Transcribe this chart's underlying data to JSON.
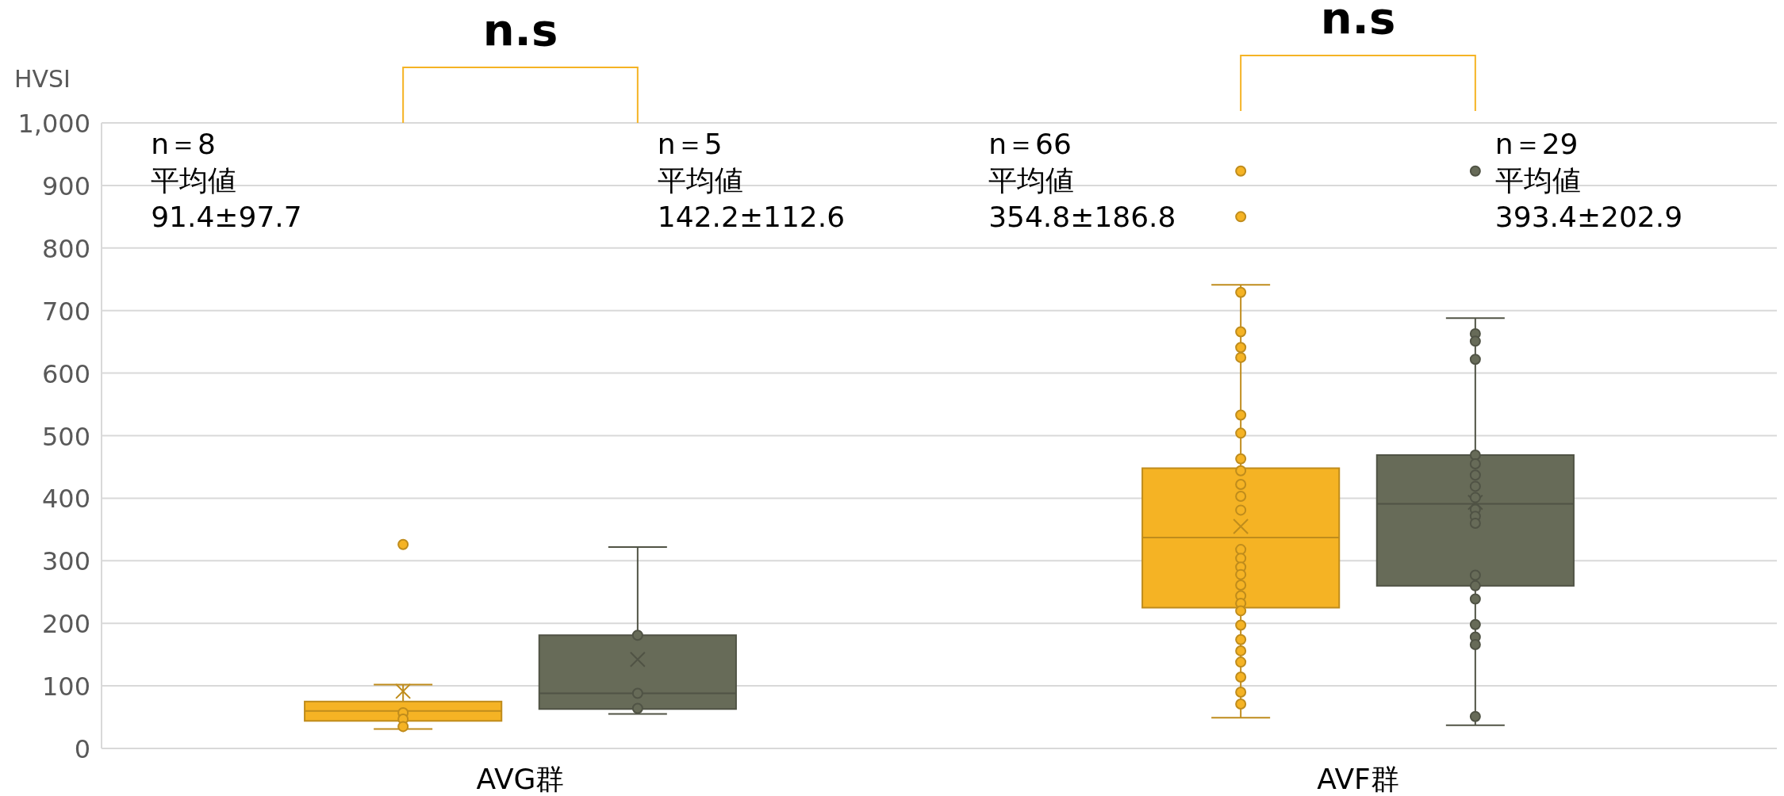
{
  "chart_data": {
    "type": "box",
    "ylabel": "HVSI",
    "categories": [
      "AVG群",
      "AVF群"
    ],
    "ylim": [
      0,
      1000
    ],
    "yticks": [
      0,
      100,
      200,
      300,
      400,
      500,
      600,
      700,
      800,
      900,
      {
        "value": 1000,
        "label": "1,000"
      }
    ],
    "grid": "y",
    "marker": "circle",
    "series": [
      {
        "color": "#f5b324",
        "boxes": [
          {
            "low": 31,
            "q1": 44,
            "median": 60,
            "q3": 75,
            "high": 102,
            "mean": 91.4,
            "outliers": [
              326
            ]
          },
          {
            "low": 49,
            "q1": 225,
            "median": 337,
            "q3": 448,
            "high": 741,
            "mean": 354.8,
            "outliers": [
              923,
              850
            ]
          }
        ]
      },
      {
        "color": "#676b58",
        "boxes": [
          {
            "low": 55,
            "q1": 63,
            "median": 88,
            "q3": 181,
            "high": 322,
            "mean": 142.2
          },
          {
            "low": 37,
            "q1": 260,
            "median": 391,
            "q3": 469,
            "high": 688,
            "mean": 393.4,
            "outliers": [
              923
            ]
          }
        ]
      },
      {
        "type": "scatter",
        "color": "#f5b324",
        "x": [
          "AVG群",
          "AVG群",
          "AVG群",
          "AVF群",
          "AVF群",
          "AVF群",
          "AVF群",
          "AVF群",
          "AVF群",
          "AVF群",
          "AVF群",
          "AVF群",
          "AVF群",
          "AVF群",
          "AVF群",
          "AVF群",
          "AVF群",
          "AVF群",
          "AVF群",
          "AVF群",
          "AVF群",
          "AVF群",
          "AVF群",
          "AVF群",
          "AVF群",
          "AVF群",
          "AVF群",
          "AVF群",
          "AVF群"
        ],
        "values": [
          57,
          47,
          35,
          729,
          666,
          641,
          625,
          533,
          504,
          463,
          444,
          422,
          403,
          381,
          318,
          304,
          290,
          278,
          261,
          244,
          232,
          220,
          197,
          174,
          156,
          138,
          114,
          90,
          71
        ]
      },
      {
        "type": "scatter",
        "color": "#676b58",
        "x": [
          "AVG群",
          "AVG群",
          "AVG群",
          "AVF群",
          "AVF群",
          "AVF群",
          "AVF群",
          "AVF群",
          "AVF群",
          "AVF群",
          "AVF群",
          "AVF群",
          "AVF群",
          "AVF群",
          "AVF群",
          "AVF群",
          "AVF群",
          "AVF群",
          "AVF群",
          "AVF群",
          "AVF群"
        ],
        "values": [
          181,
          88,
          64,
          663,
          651,
          622,
          469,
          455,
          437,
          419,
          401,
          382,
          371,
          360,
          277,
          260,
          239,
          198,
          178,
          166,
          51
        ]
      }
    ],
    "annotations": [
      "n.s",
      "n＝8\n平均値\n91.4±97.7",
      "n＝5\n平均値\n142.2±112.6",
      "n.s",
      "n＝66\n平均値\n354.8±186.8",
      "n＝29\n平均値\n393.4±202.9"
    ]
  }
}
